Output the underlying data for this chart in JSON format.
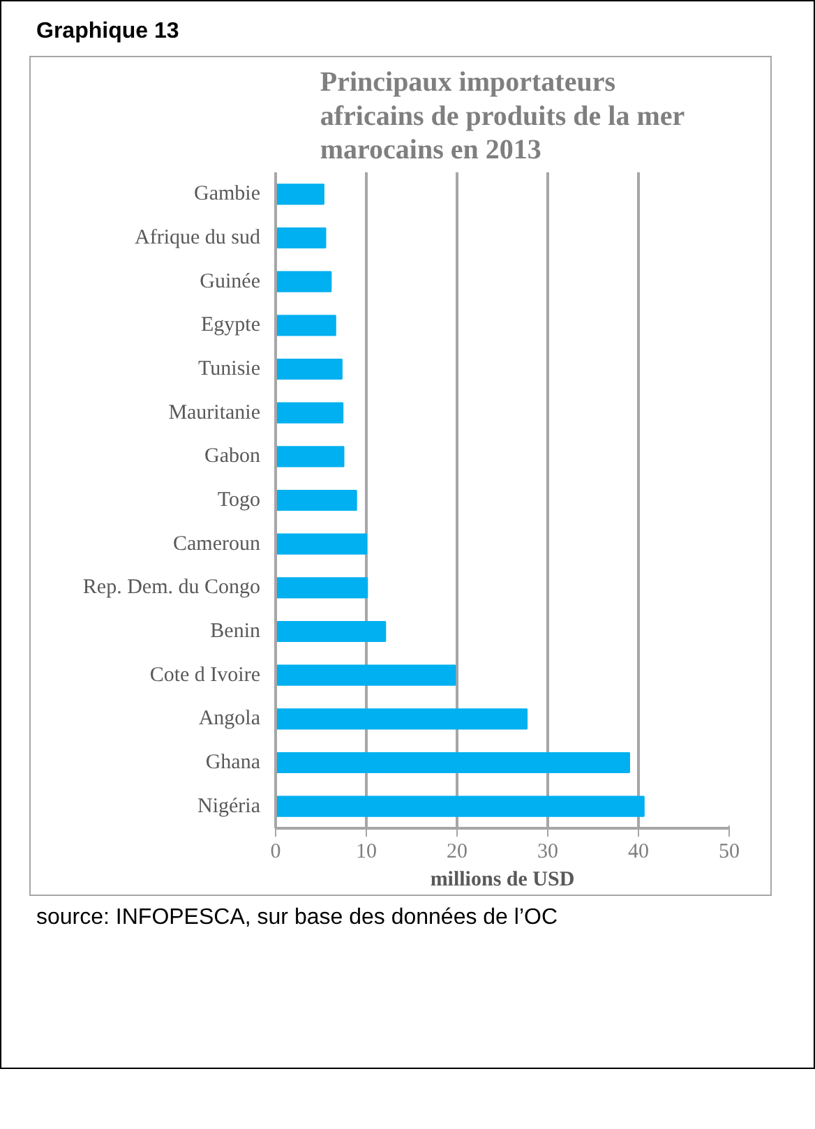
{
  "chart_data": {
    "type": "bar",
    "orientation": "horizontal",
    "title": "Principaux importateurs africains de produits de la mer marocains en 2013",
    "categories": [
      "Gambie",
      "Afrique du sud",
      "Guinée",
      "Egypte",
      "Tunisie",
      "Mauritanie",
      "Gabon",
      "Togo",
      "Cameroun",
      "Rep. Dem. du Congo",
      "Benin",
      "Cote d Ivoire",
      "Angola",
      "Ghana",
      "Nigéria"
    ],
    "values": [
      5.3,
      5.5,
      6.1,
      6.6,
      7.3,
      7.4,
      7.5,
      8.9,
      10.0,
      10.1,
      12.1,
      19.8,
      27.7,
      39.0,
      40.6
    ],
    "color": "#00b0f0",
    "xlim": [
      0,
      50
    ],
    "xticks": [
      0,
      10,
      20,
      30,
      40,
      50
    ],
    "xlabel": "millions de USD",
    "grid": "x",
    "annotations": [
      "Graphique 13",
      "source: INFOPESCA, sur base des données de l’OC"
    ]
  }
}
